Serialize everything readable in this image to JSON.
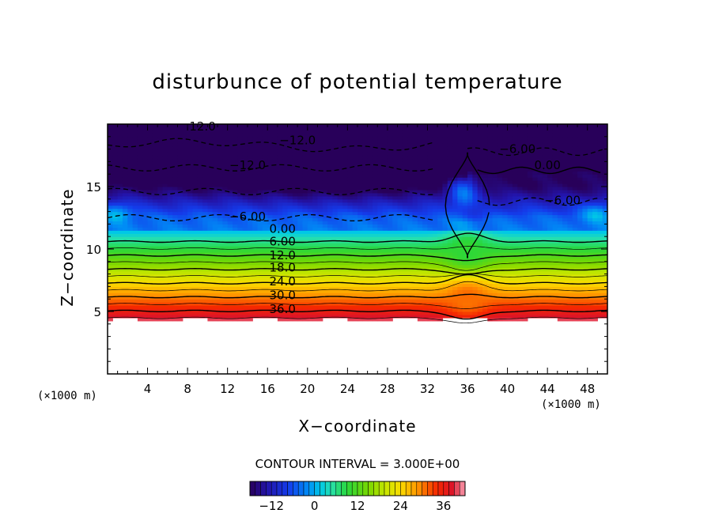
{
  "chart_data": {
    "type": "heatmap",
    "title": "disturbunce of potential temperature",
    "xlabel": "X−coordinate",
    "ylabel": "Z−coordinate",
    "x_unit_label": "(×1000 m)",
    "y_unit_label": "(×1000 m)",
    "xlim": [
      0,
      50
    ],
    "ylim": [
      0,
      20
    ],
    "x_ticks": [
      4,
      8,
      12,
      16,
      20,
      24,
      28,
      32,
      36,
      40,
      44,
      48
    ],
    "x_tick_labels": [
      "4",
      "8",
      "12",
      "16",
      "20",
      "24",
      "28",
      "32",
      "36",
      "40",
      "44",
      "48"
    ],
    "y_ticks": [
      5,
      10,
      15
    ],
    "y_tick_labels": [
      "5",
      "10",
      "15"
    ],
    "contour_interval_text": "CONTOUR INTERVAL = 3.000E+00",
    "contour_interval": 3.0,
    "value_range": [
      -18,
      42
    ],
    "colorbar": {
      "tick_values": [
        -12,
        0,
        12,
        24,
        36
      ],
      "tick_labels": [
        "−12",
        "0",
        "12",
        "24",
        "36"
      ]
    },
    "contour_labels": [
      {
        "text": "12.0",
        "x": 9.5,
        "z": 19.8
      },
      {
        "text": "−12.0",
        "x": 19.0,
        "z": 18.7
      },
      {
        "text": "−12.0",
        "x": 14.0,
        "z": 16.7
      },
      {
        "text": "−6.00",
        "x": 14.0,
        "z": 12.6
      },
      {
        "text": "−6.00",
        "x": 41.0,
        "z": 18.0
      },
      {
        "text": "0.00",
        "x": 44.0,
        "z": 16.7
      },
      {
        "text": "−6.00",
        "x": 45.5,
        "z": 13.9
      },
      {
        "text": "0.00",
        "x": 17.5,
        "z": 11.6
      },
      {
        "text": "6.00",
        "x": 17.5,
        "z": 10.6
      },
      {
        "text": "12.0",
        "x": 17.5,
        "z": 9.5
      },
      {
        "text": "18.0",
        "x": 17.5,
        "z": 8.5
      },
      {
        "text": "24.0",
        "x": 17.5,
        "z": 7.4
      },
      {
        "text": "30.0",
        "x": 17.5,
        "z": 6.3
      },
      {
        "text": "36.0",
        "x": 17.5,
        "z": 5.2
      }
    ]
  }
}
